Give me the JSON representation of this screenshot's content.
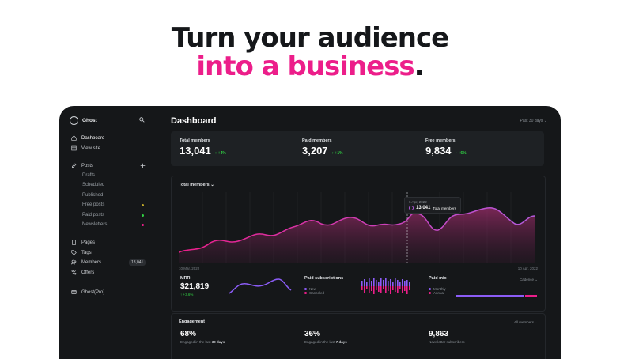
{
  "headline": {
    "line1": "Turn your audience",
    "line2": "into a business",
    "dot": "."
  },
  "sidebar": {
    "brand": "Ghost",
    "nav": [
      {
        "label": "Dashboard",
        "icon": "home-icon"
      },
      {
        "label": "View site",
        "icon": "window-icon"
      },
      {
        "label": "Posts",
        "icon": "pencil-icon"
      }
    ],
    "post_subitems": [
      {
        "label": "Drafts"
      },
      {
        "label": "Scheduled"
      },
      {
        "label": "Published"
      },
      {
        "label": "Free posts",
        "dot_color": "#30cf43"
      },
      {
        "label": "Paid posts",
        "dot_color": "#c0a829"
      },
      {
        "label": "Newsletters",
        "dot_color": "#ec1e8a"
      }
    ],
    "nav2": [
      {
        "label": "Pages",
        "icon": "page-icon"
      },
      {
        "label": "Tags",
        "icon": "tag-icon"
      },
      {
        "label": "Members",
        "icon": "members-icon",
        "badge": "13,041"
      },
      {
        "label": "Offers",
        "icon": "percent-icon"
      }
    ],
    "footer": {
      "label": "Ghost(Pro)",
      "icon": "card-icon"
    }
  },
  "dashboard": {
    "title": "Dashboard",
    "range": "Past 30 days ⌄",
    "stats": [
      {
        "label": "Total members",
        "value": "13,041",
        "change": "↑ +4%"
      },
      {
        "label": "Paid members",
        "value": "3,207",
        "change": "↑ +1%"
      },
      {
        "label": "Free members",
        "value": "9,834",
        "change": "↑ +6%"
      }
    ],
    "chart_title": "Total members ⌄",
    "axis_start": "10 Mar, 2022",
    "axis_end": "10 Apr, 2022",
    "tooltip": {
      "date": "6 Apr, 2022",
      "value": "13,041",
      "label": "Total members"
    },
    "mrr": {
      "label": "MRR",
      "value": "$21,819",
      "change": "↑ +3.6%"
    },
    "paid_subs": {
      "label": "Paid subscriptions",
      "legend": [
        {
          "name": "New",
          "color": "#8b5cf6"
        },
        {
          "name": "Canceled",
          "color": "#ec1e8a"
        }
      ]
    },
    "paid_mix": {
      "label": "Paid mix",
      "select": "Cadence ⌄",
      "legend": [
        {
          "name": "Monthly",
          "color": "#8b5cf6"
        },
        {
          "name": "Annual",
          "color": "#ec1e8a"
        }
      ]
    },
    "engagement": {
      "title": "Engagement",
      "select": "All members ⌄",
      "items": [
        {
          "value": "68%",
          "caption_pre": "Engaged in the last ",
          "caption_bold": "30 days"
        },
        {
          "value": "36%",
          "caption_pre": "Engaged in the last ",
          "caption_bold": "7 days"
        },
        {
          "value": "9,863",
          "caption_pre": "Newsletter subscribers",
          "caption_bold": ""
        }
      ]
    }
  },
  "colors": {
    "accent": "#ec1e8a",
    "violet": "#8b5cf6",
    "background": "#151719",
    "positive": "#30cf43"
  }
}
